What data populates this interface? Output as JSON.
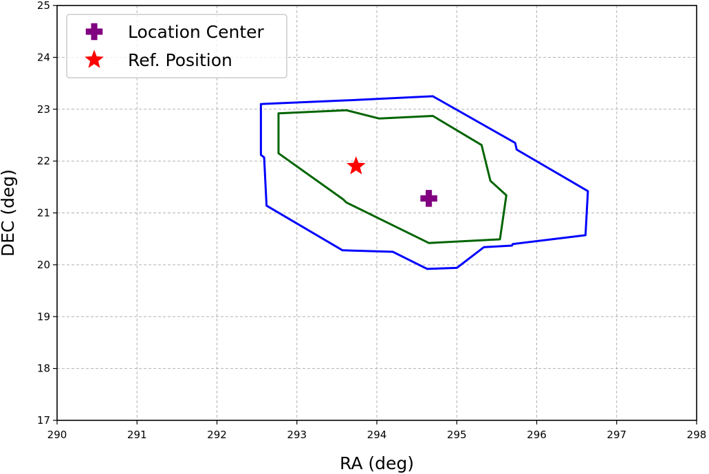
{
  "chart_data": {
    "type": "line",
    "title": "",
    "xlabel": "RA (deg)",
    "ylabel": "DEC (deg)",
    "xlim": [
      290,
      298
    ],
    "ylim": [
      17,
      25
    ],
    "xticks": [
      290,
      291,
      292,
      293,
      294,
      295,
      296,
      297,
      298
    ],
    "yticks": [
      17,
      18,
      19,
      20,
      21,
      22,
      23,
      24,
      25
    ],
    "grid": true,
    "legend_position": "top-left",
    "series": [
      {
        "color": "#0000ff",
        "closed": true,
        "points": [
          [
            292.55,
            23.1
          ],
          [
            293.62,
            23.17
          ],
          [
            294.7,
            23.25
          ],
          [
            295.73,
            22.35
          ],
          [
            295.75,
            22.22
          ],
          [
            296.64,
            21.42
          ],
          [
            296.61,
            20.57
          ],
          [
            295.7,
            20.4
          ],
          [
            295.69,
            20.37
          ],
          [
            295.34,
            20.34
          ],
          [
            295.0,
            19.94
          ],
          [
            294.63,
            19.92
          ],
          [
            294.2,
            20.25
          ],
          [
            293.57,
            20.28
          ],
          [
            292.62,
            21.14
          ],
          [
            292.59,
            22.07
          ],
          [
            292.55,
            22.12
          ]
        ]
      },
      {
        "color": "#006400",
        "closed": true,
        "points": [
          [
            292.77,
            22.92
          ],
          [
            293.62,
            22.98
          ],
          [
            294.03,
            22.82
          ],
          [
            294.7,
            22.87
          ],
          [
            295.31,
            22.31
          ],
          [
            295.42,
            21.62
          ],
          [
            295.62,
            21.34
          ],
          [
            295.54,
            20.49
          ],
          [
            294.65,
            20.42
          ],
          [
            293.62,
            21.2
          ],
          [
            293.58,
            21.26
          ],
          [
            292.77,
            22.15
          ]
        ]
      }
    ],
    "markers": [
      {
        "name": "Location Center",
        "x": 294.65,
        "y": 21.28,
        "symbol": "plus",
        "color": "#800080"
      },
      {
        "name": "Ref. Position",
        "x": 293.74,
        "y": 21.9,
        "symbol": "star",
        "color": "#ff0000"
      }
    ],
    "legend": [
      "Location Center",
      "Ref. Position"
    ]
  }
}
